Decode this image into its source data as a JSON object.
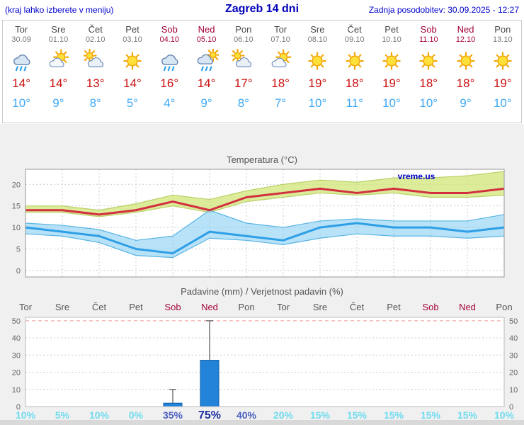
{
  "header": {
    "left_note": "(kraj lahko izberete v meniju)",
    "title": "Zagreb 14 dni",
    "updated": "Zadnja posodobitev: 30.09.2025 - 12:27"
  },
  "colors": {
    "accent_blue": "#0000cc",
    "weekend": "#a3003c",
    "temp_max": "#d22f3f",
    "temp_min": "#2e9fe6",
    "bar": "#2283d8",
    "prob_low": "#6fdcef",
    "prob_med": "#4a5fc0",
    "prob_high": "#1b2fa0"
  },
  "forecast": {
    "days": [
      {
        "name": "Tor",
        "date": "30.09",
        "weekend": false,
        "icon": "rain",
        "tmax": "14°",
        "tmin": "10°"
      },
      {
        "name": "Sre",
        "date": "01.10",
        "weekend": false,
        "icon": "sun-cloud",
        "tmax": "14°",
        "tmin": "9°"
      },
      {
        "name": "Čet",
        "date": "02.10",
        "weekend": false,
        "icon": "cloud-sun",
        "tmax": "13°",
        "tmin": "8°"
      },
      {
        "name": "Pet",
        "date": "03.10",
        "weekend": false,
        "icon": "sun",
        "tmax": "14°",
        "tmin": "5°"
      },
      {
        "name": "Sob",
        "date": "04.10",
        "weekend": true,
        "icon": "rain",
        "tmax": "16°",
        "tmin": "4°"
      },
      {
        "name": "Ned",
        "date": "05.10",
        "weekend": true,
        "icon": "rain-sun",
        "tmax": "14°",
        "tmin": "9°"
      },
      {
        "name": "Pon",
        "date": "06.10",
        "weekend": false,
        "icon": "cloud-sun",
        "tmax": "17°",
        "tmin": "8°"
      },
      {
        "name": "Tor",
        "date": "07.10",
        "weekend": false,
        "icon": "sun-cloud",
        "tmax": "18°",
        "tmin": "7°"
      },
      {
        "name": "Sre",
        "date": "08.10",
        "weekend": false,
        "icon": "sun",
        "tmax": "19°",
        "tmin": "10°"
      },
      {
        "name": "Čet",
        "date": "09.10",
        "weekend": false,
        "icon": "sun",
        "tmax": "18°",
        "tmin": "11°"
      },
      {
        "name": "Pet",
        "date": "10.10",
        "weekend": false,
        "icon": "sun",
        "tmax": "19°",
        "tmin": "10°"
      },
      {
        "name": "Sob",
        "date": "11.10",
        "weekend": true,
        "icon": "sun",
        "tmax": "18°",
        "tmin": "10°"
      },
      {
        "name": "Ned",
        "date": "12.10",
        "weekend": true,
        "icon": "sun",
        "tmax": "18°",
        "tmin": "9°"
      },
      {
        "name": "Pon",
        "date": "13.10",
        "weekend": false,
        "icon": "sun",
        "tmax": "19°",
        "tmin": "10°"
      }
    ]
  },
  "chart_data": [
    {
      "type": "line",
      "title": "Temperatura (°C)",
      "watermark": "vreme.us",
      "categories": [
        "Tor",
        "Sre",
        "Čet",
        "Pet",
        "Sob",
        "Ned",
        "Pon",
        "Tor",
        "Sre",
        "Čet",
        "Pet",
        "Sob",
        "Ned",
        "Pon"
      ],
      "ylim": [
        -1.5,
        23.5
      ],
      "yticks": [
        0,
        5,
        10,
        15,
        20
      ],
      "series": [
        {
          "name": "max",
          "color": "#d22f3f",
          "values": [
            14,
            14,
            13,
            14,
            16,
            14,
            17,
            18,
            19,
            18,
            19,
            18,
            18,
            19
          ]
        },
        {
          "name": "min",
          "color": "#2e9fe6",
          "values": [
            10,
            9,
            8,
            5,
            4,
            9,
            8,
            7,
            10,
            11,
            10,
            10,
            9,
            10
          ]
        }
      ],
      "bands": [
        {
          "name": "max-range",
          "fill": "rgba(205,228,110,0.7)",
          "edge": "#b9d168",
          "upper": [
            15,
            15,
            14,
            15.5,
            17.5,
            16.5,
            18.5,
            20,
            21,
            20.5,
            21.5,
            21.5,
            22,
            23
          ],
          "lower": [
            13.5,
            13.5,
            12.5,
            13.5,
            15,
            13.5,
            16,
            17,
            18,
            17.5,
            18,
            17,
            17,
            17.5
          ]
        },
        {
          "name": "min-range",
          "fill": "rgba(125,203,242,0.55)",
          "edge": "#58b4e4",
          "upper": [
            11,
            10.5,
            9.5,
            7,
            8,
            14,
            11,
            10,
            11.5,
            12,
            11.5,
            11.5,
            11.5,
            13
          ],
          "lower": [
            8.5,
            8,
            6.5,
            3.5,
            3,
            7.5,
            7,
            6,
            7.5,
            8.5,
            8,
            8,
            7.5,
            8
          ]
        }
      ]
    },
    {
      "type": "bar",
      "title": "Padavine (mm) / Verjetnost padavin (%)",
      "categories": [
        "Tor",
        "Sre",
        "Čet",
        "Pet",
        "Sob",
        "Ned",
        "Pon",
        "Tor",
        "Sre",
        "Čet",
        "Pet",
        "Sob",
        "Ned",
        "Pon"
      ],
      "ylim": [
        0,
        52
      ],
      "yticks": [
        0,
        10,
        20,
        30,
        40,
        50
      ],
      "values": [
        0,
        0,
        0,
        0,
        2,
        27,
        0,
        0,
        0,
        0,
        0,
        0,
        0,
        0
      ],
      "whisker_values": [
        0,
        0,
        0,
        0,
        10,
        50,
        0,
        0,
        0,
        0,
        0,
        0,
        0,
        0
      ],
      "probabilities": [
        "10%",
        "5%",
        "10%",
        "0%",
        "35%",
        "75%",
        "40%",
        "20%",
        "15%",
        "15%",
        "15%",
        "15%",
        "15%",
        "10%"
      ]
    }
  ]
}
